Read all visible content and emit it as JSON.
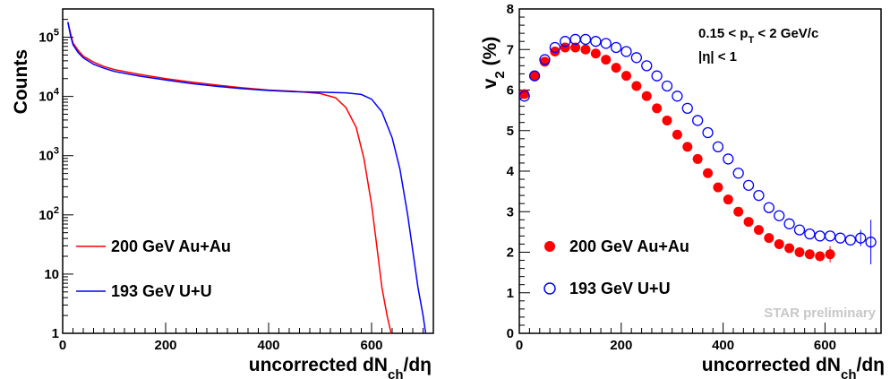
{
  "chart_data": [
    {
      "type": "line",
      "panel": "left",
      "xlabel": "uncorrected dN",
      "xlabel_sub": "ch",
      "xlabel_tail": "/dη",
      "ylabel": "Counts",
      "xlim": [
        0,
        720
      ],
      "ylim": [
        1,
        300000
      ],
      "yscale": "log",
      "x_ticks": [
        "0",
        "200",
        "400",
        "600"
      ],
      "y_ticks": [
        {
          "base": "1",
          "exp": ""
        },
        {
          "base": "10",
          "exp": ""
        },
        {
          "base": "10",
          "exp": "2"
        },
        {
          "base": "10",
          "exp": "3"
        },
        {
          "base": "10",
          "exp": "4"
        },
        {
          "base": "10",
          "exp": "5"
        }
      ],
      "series": [
        {
          "name": "200 GeV Au+Au",
          "color": "#ff0000",
          "x": [
            10,
            15,
            20,
            30,
            40,
            60,
            80,
            100,
            150,
            200,
            250,
            300,
            350,
            400,
            450,
            500,
            530,
            550,
            570,
            585,
            600,
            610,
            620,
            630,
            638
          ],
          "y": [
            180000,
            120000,
            80000,
            60000,
            48000,
            38000,
            32000,
            28500,
            23500,
            20000,
            17500,
            15500,
            14000,
            12800,
            12200,
            11200,
            9500,
            6500,
            3000,
            900,
            150,
            30,
            6,
            2,
            1
          ]
        },
        {
          "name": "193 GeV U+U",
          "color": "#0000ff",
          "x": [
            10,
            15,
            20,
            30,
            40,
            60,
            80,
            100,
            150,
            200,
            250,
            300,
            350,
            400,
            450,
            500,
            550,
            580,
            600,
            620,
            640,
            655,
            670,
            680,
            690,
            700,
            705
          ],
          "y": [
            180000,
            110000,
            75000,
            55000,
            45000,
            35000,
            30000,
            26500,
            22000,
            19000,
            16500,
            14800,
            13500,
            12600,
            12000,
            11800,
            11500,
            10800,
            9000,
            5500,
            2000,
            600,
            100,
            25,
            6,
            2,
            1
          ]
        }
      ]
    },
    {
      "type": "scatter",
      "panel": "right",
      "xlabel": "uncorrected dN",
      "xlabel_sub": "ch",
      "xlabel_tail": "/dη",
      "ylabel": "v",
      "ylabel_sub": "2",
      "ylabel_tail": " (%)",
      "xlim": [
        0,
        710
      ],
      "ylim": [
        0,
        8
      ],
      "x_ticks": [
        "0",
        "200",
        "400",
        "600"
      ],
      "y_ticks": [
        "0",
        "1",
        "2",
        "3",
        "4",
        "5",
        "6",
        "7",
        "8"
      ],
      "annotation_line1_a": "0.15 < p",
      "annotation_line1_sub": "T",
      "annotation_line1_b": " < 2 GeV/c",
      "annotation_line2": "|η| < 1",
      "watermark": "STAR preliminary",
      "series": [
        {
          "name": "200 GeV Au+Au",
          "marker": "filled-circle",
          "color": "#ff0000",
          "x": [
            10,
            30,
            50,
            70,
            90,
            110,
            130,
            150,
            170,
            190,
            210,
            230,
            250,
            270,
            290,
            310,
            330,
            350,
            370,
            390,
            410,
            430,
            450,
            470,
            490,
            510,
            530,
            550,
            570,
            590,
            610
          ],
          "y": [
            5.9,
            6.35,
            6.7,
            6.95,
            7.05,
            7.05,
            7.0,
            6.9,
            6.75,
            6.55,
            6.35,
            6.1,
            5.85,
            5.55,
            5.25,
            4.9,
            4.6,
            4.3,
            3.95,
            3.6,
            3.3,
            3.0,
            2.75,
            2.55,
            2.35,
            2.2,
            2.1,
            2.0,
            1.95,
            1.9,
            1.95
          ],
          "err_last": 0.2
        },
        {
          "name": "193 GeV U+U",
          "marker": "open-circle",
          "color": "#0000ff",
          "x": [
            10,
            30,
            50,
            70,
            90,
            110,
            130,
            150,
            170,
            190,
            210,
            230,
            250,
            270,
            290,
            310,
            330,
            350,
            370,
            390,
            410,
            430,
            450,
            470,
            490,
            510,
            530,
            550,
            570,
            590,
            610,
            630,
            650,
            670,
            690
          ],
          "y": [
            5.85,
            6.35,
            6.75,
            7.05,
            7.2,
            7.25,
            7.25,
            7.2,
            7.15,
            7.05,
            6.95,
            6.8,
            6.6,
            6.35,
            6.1,
            5.85,
            5.55,
            5.25,
            4.95,
            4.6,
            4.3,
            3.95,
            3.65,
            3.4,
            3.1,
            2.9,
            2.7,
            2.55,
            2.45,
            2.4,
            2.4,
            2.35,
            2.3,
            2.35,
            2.25
          ],
          "err_tail": [
            0.0,
            0.0,
            0.0,
            0.2,
            0.55
          ]
        }
      ]
    }
  ]
}
